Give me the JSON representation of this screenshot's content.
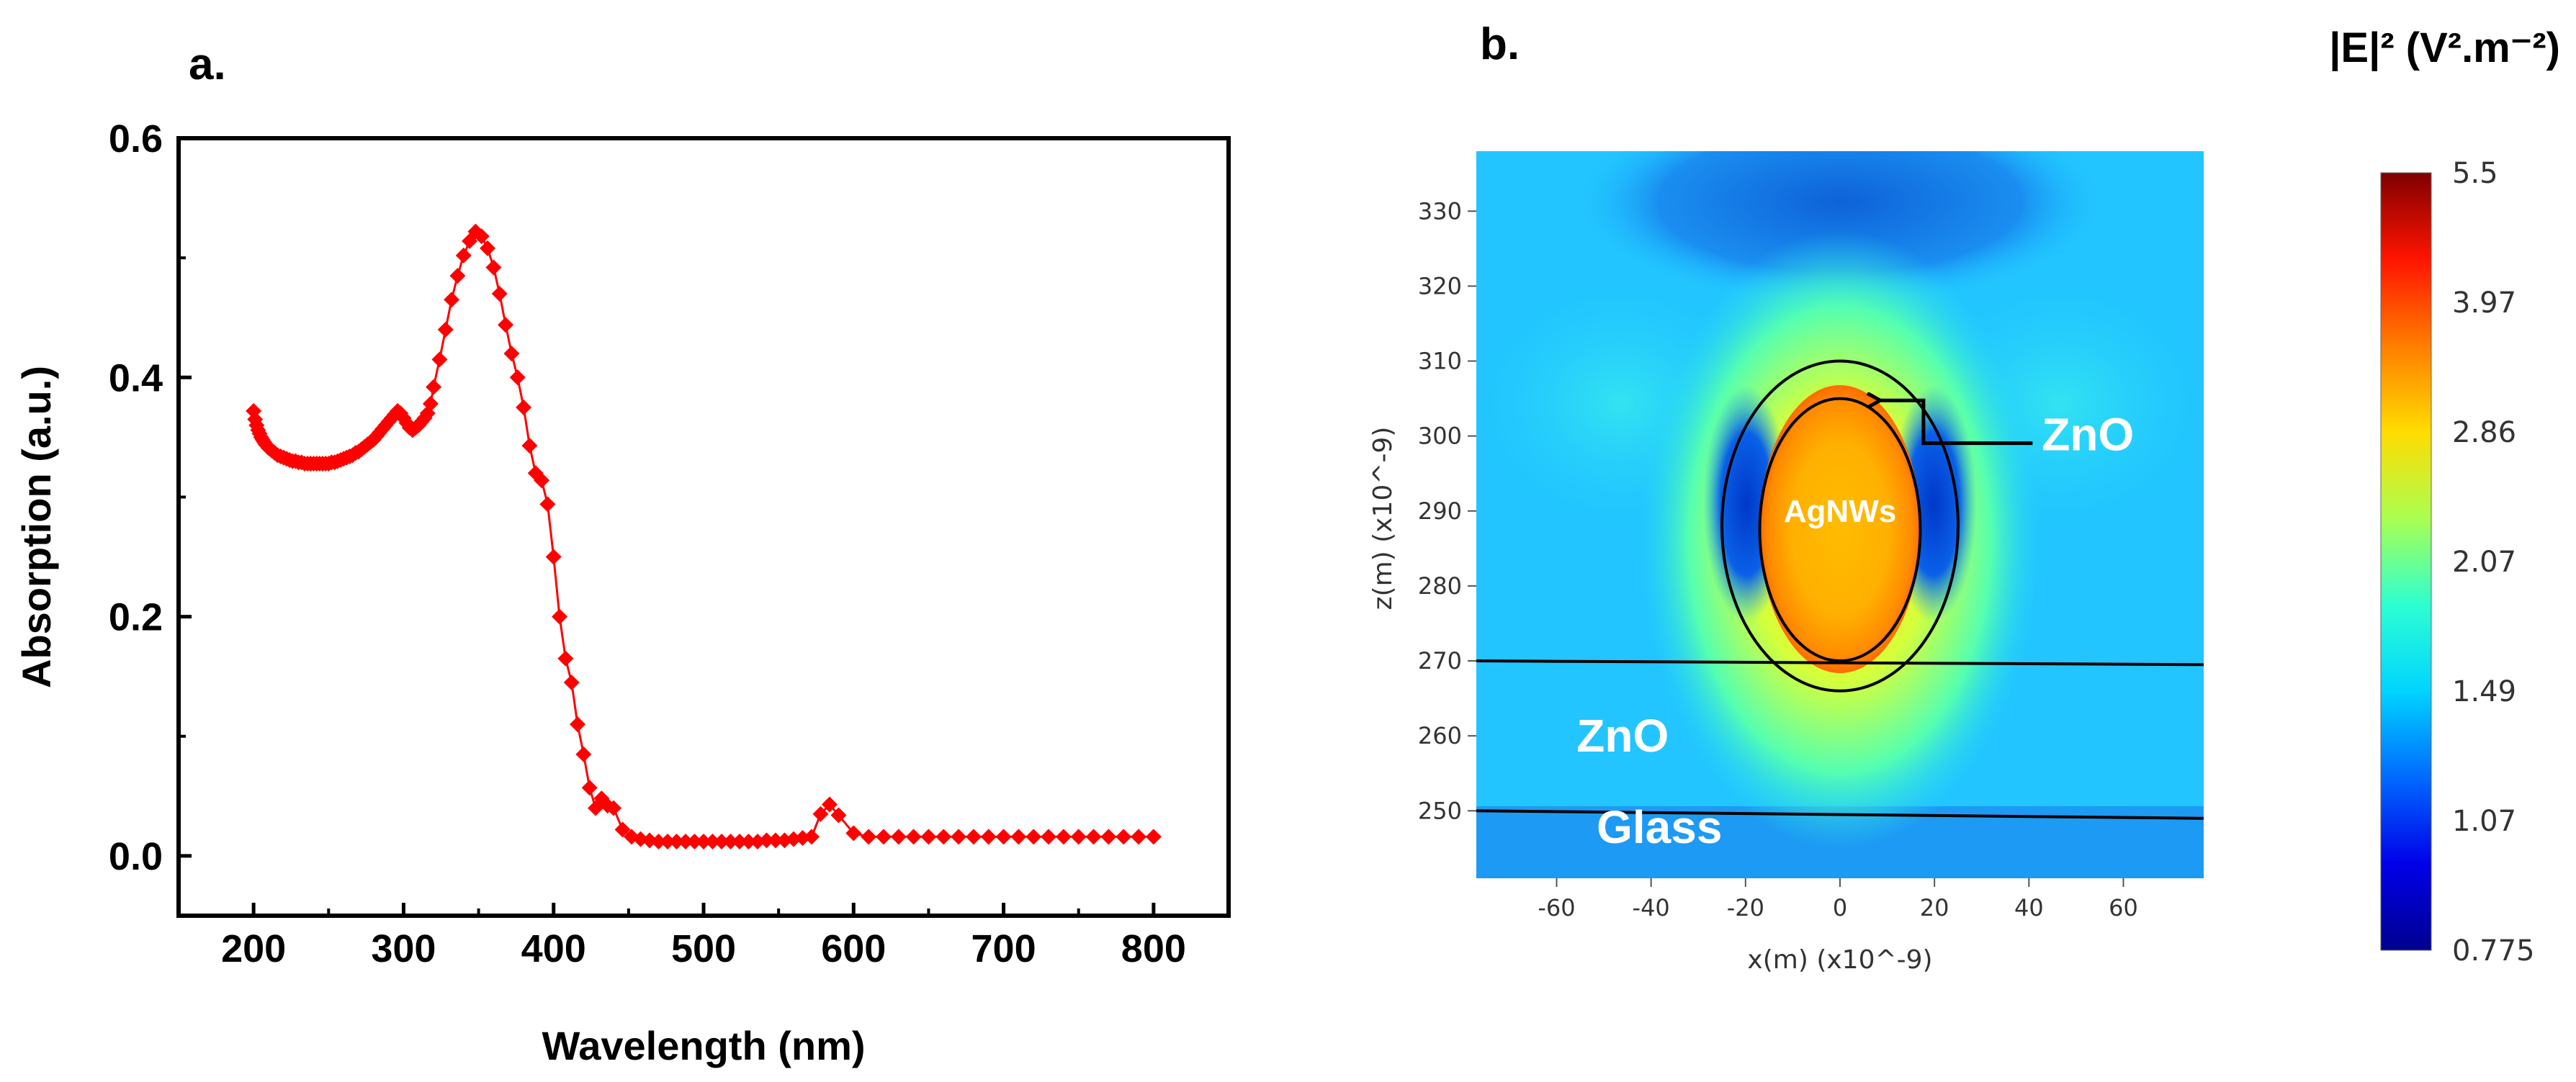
{
  "panel_a": {
    "label": "a.",
    "chart_data": {
      "type": "scatter",
      "title": "",
      "xlabel": "Wavelength (nm)",
      "ylabel": "Absorption (a.u.)",
      "xlim": [
        150,
        850
      ],
      "ylim": [
        -0.05,
        0.6
      ],
      "xticks": [
        200,
        300,
        400,
        500,
        600,
        700,
        800
      ],
      "yticks": [
        0.0,
        0.2,
        0.4,
        0.6
      ],
      "xtick_labels": [
        "200",
        "300",
        "400",
        "500",
        "600",
        "700",
        "800"
      ],
      "ytick_labels": [
        "0.0",
        "0.2",
        "0.4",
        "0.6"
      ],
      "grid": false,
      "marker": "diamond",
      "color": "#ff0000",
      "series": [
        {
          "name": "Absorption",
          "x": [
            200,
            201,
            202,
            203,
            204,
            205,
            206,
            207,
            208,
            209,
            210,
            212,
            214,
            216,
            218,
            220,
            222,
            224,
            226,
            228,
            230,
            232,
            234,
            236,
            238,
            240,
            242,
            244,
            246,
            248,
            250,
            252,
            254,
            256,
            258,
            260,
            262,
            264,
            266,
            268,
            270,
            272,
            274,
            276,
            278,
            280,
            282,
            284,
            286,
            288,
            290,
            292,
            294,
            296,
            298,
            300,
            302,
            304,
            306,
            308,
            310,
            312,
            314,
            316,
            318,
            320,
            324,
            328,
            332,
            336,
            340,
            344,
            348,
            352,
            356,
            360,
            364,
            368,
            372,
            376,
            380,
            384,
            388,
            392,
            396,
            400,
            404,
            408,
            412,
            416,
            420,
            424,
            428,
            432,
            436,
            440,
            446,
            452,
            458,
            464,
            470,
            476,
            482,
            488,
            494,
            500,
            506,
            512,
            518,
            524,
            530,
            536,
            542,
            548,
            554,
            560,
            566,
            572,
            578,
            584,
            590,
            600,
            610,
            620,
            630,
            640,
            650,
            660,
            670,
            680,
            690,
            700,
            710,
            720,
            730,
            740,
            750,
            760,
            770,
            780,
            790,
            800
          ],
          "y": [
            0.372,
            0.365,
            0.36,
            0.356,
            0.353,
            0.35,
            0.348,
            0.346,
            0.344,
            0.343,
            0.341,
            0.339,
            0.337,
            0.335,
            0.334,
            0.333,
            0.332,
            0.331,
            0.33,
            0.33,
            0.329,
            0.329,
            0.328,
            0.328,
            0.328,
            0.328,
            0.328,
            0.328,
            0.328,
            0.328,
            0.328,
            0.329,
            0.329,
            0.33,
            0.331,
            0.332,
            0.333,
            0.334,
            0.335,
            0.337,
            0.338,
            0.34,
            0.342,
            0.344,
            0.346,
            0.348,
            0.351,
            0.354,
            0.357,
            0.36,
            0.363,
            0.366,
            0.369,
            0.372,
            0.37,
            0.366,
            0.362,
            0.358,
            0.356,
            0.358,
            0.36,
            0.363,
            0.366,
            0.37,
            0.378,
            0.392,
            0.415,
            0.44,
            0.465,
            0.485,
            0.502,
            0.514,
            0.522,
            0.518,
            0.508,
            0.492,
            0.47,
            0.444,
            0.42,
            0.4,
            0.375,
            0.343,
            0.32,
            0.314,
            0.294,
            0.25,
            0.2,
            0.165,
            0.145,
            0.11,
            0.085,
            0.057,
            0.04,
            0.048,
            0.042,
            0.04,
            0.022,
            0.016,
            0.014,
            0.013,
            0.012,
            0.012,
            0.012,
            0.012,
            0.012,
            0.012,
            0.012,
            0.012,
            0.012,
            0.012,
            0.012,
            0.012,
            0.013,
            0.013,
            0.013,
            0.014,
            0.015,
            0.016,
            0.035,
            0.043,
            0.034,
            0.019,
            0.016,
            0.016,
            0.016,
            0.016,
            0.016,
            0.016,
            0.016,
            0.016,
            0.016,
            0.016,
            0.016,
            0.016,
            0.016,
            0.016,
            0.016,
            0.016,
            0.016,
            0.016,
            0.016,
            0.016
          ]
        }
      ]
    }
  },
  "panel_b": {
    "label": "b.",
    "chart_data": {
      "type": "heatmap",
      "title": "",
      "xlabel": "x(m) (x10^-9)",
      "ylabel": "z(m) (x10^-9)",
      "xlim": [
        -77,
        77
      ],
      "ylim": [
        241,
        338
      ],
      "xticks": [
        -60,
        -40,
        -20,
        0,
        20,
        40,
        60
      ],
      "yticks": [
        250,
        260,
        270,
        280,
        290,
        300,
        310,
        320,
        330
      ],
      "xtick_labels": [
        "-60",
        "-40",
        "-20",
        "0",
        "20",
        "40",
        "60"
      ],
      "ytick_labels": [
        "250",
        "260",
        "270",
        "280",
        "290",
        "300",
        "310",
        "320",
        "330"
      ],
      "colorbar": {
        "title": "|E|² (V².m⁻²)",
        "range": [
          0.775,
          5.5
        ],
        "ticks": [
          5.5,
          3.97,
          2.86,
          2.07,
          1.49,
          1.07,
          0.775
        ],
        "tick_labels": [
          "5.5",
          "3.97",
          "2.86",
          "2.07",
          "1.49",
          "1.07",
          "0.775"
        ],
        "colors": [
          "#7f0000",
          "#ff1400",
          "#ff7d00",
          "#ffdc00",
          "#aaff50",
          "#2dffd2",
          "#00d4ff",
          "#006aff",
          "#0000e8",
          "#00008f"
        ]
      },
      "interfaces": [
        {
          "name": "ZnO / Glass boundary",
          "z_left": 250,
          "z_right": 249
        },
        {
          "name": "ZnO / air boundary",
          "z_left": 270,
          "z_right": 269.5
        }
      ],
      "structures": [
        {
          "name": "AgNWs core",
          "center": [
            0,
            287.5
          ],
          "radius_x": 17,
          "radius_z": 17.5
        },
        {
          "name": "ZnO shell",
          "center": [
            0,
            288
          ],
          "radius_x": 25,
          "radius_z": 22
        }
      ],
      "annotations": [
        {
          "text": "AgNWs",
          "x": 0,
          "z": 290
        },
        {
          "text": "ZnO",
          "x": 40,
          "z": 300
        },
        {
          "text": "ZnO",
          "x": -55,
          "z": 260
        },
        {
          "text": "Glass",
          "x": -50,
          "z": 248
        }
      ]
    }
  }
}
